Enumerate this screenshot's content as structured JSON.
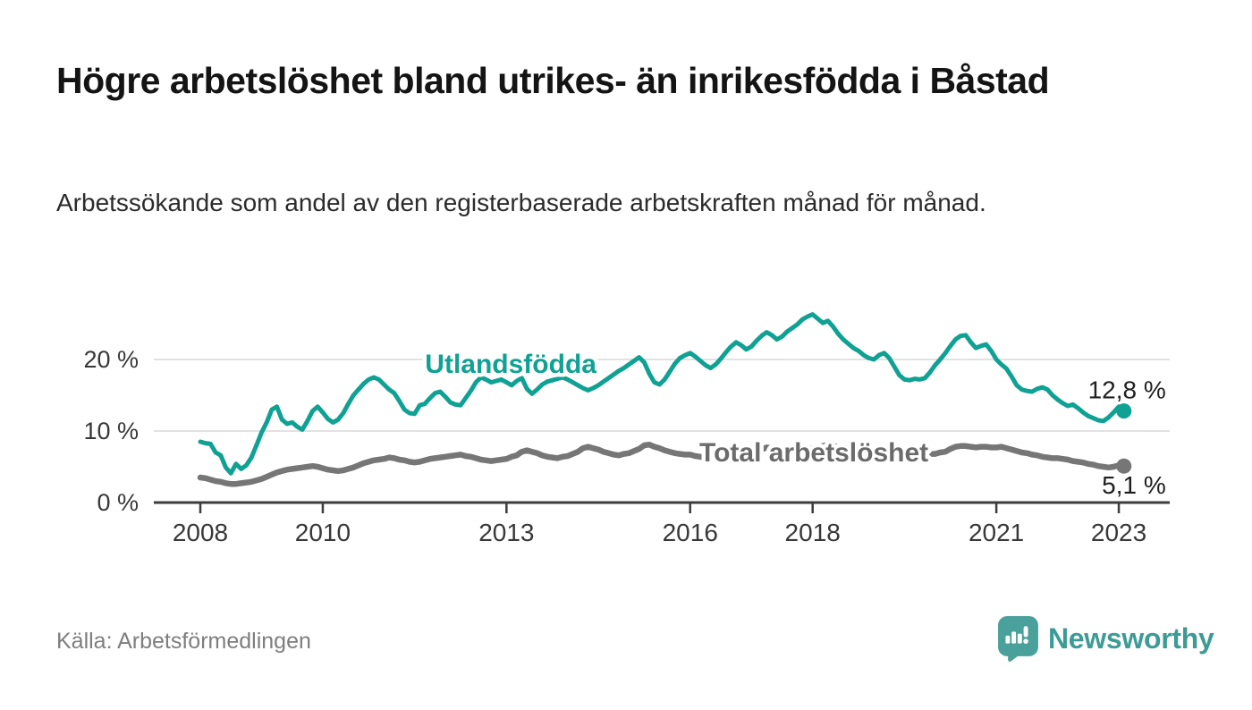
{
  "page": {
    "title": "Högre arbetslöshet bland utrikes- än inrikesfödda i Båstad",
    "subtitle": "Arbetssökande som andel av den registerbaserade arbetskraften månad för månad.",
    "source": "Källa: Arbetsförmedlingen",
    "brand": "Newsworthy"
  },
  "colors": {
    "series_foreign": "#0fa193",
    "series_total": "#767676",
    "series_total_label": "#6b6b6b",
    "grid": "#d8d8d8",
    "axis": "#3d3d3d",
    "tick_text": "#383838",
    "end_label_text": "#1f1f1f",
    "logo": "#4aa09b",
    "wordmark": "#3d9b96"
  },
  "chart_data": {
    "type": "line",
    "title": "Högre arbetslöshet bland utrikes- än inrikesfödda i Båstad",
    "subtitle": "Arbetssökande som andel av den registerbaserade arbetskraften månad för månad.",
    "unit": "%",
    "x_axis": {
      "ticks": [
        2008,
        2010,
        2013,
        2016,
        2018,
        2021,
        2023
      ],
      "range": [
        2007.2,
        2023.85
      ]
    },
    "y_axis": {
      "ticks": [
        0,
        10,
        20
      ],
      "tick_suffix": " %",
      "gridlines": [
        10,
        20
      ],
      "range": [
        0,
        28
      ],
      "grid_on": true
    },
    "legend_position": "inline-labels",
    "series": [
      {
        "name": "Total arbetslöshet",
        "color": "#767676",
        "label_color": "#6b6b6b",
        "label_pos": {
          "year": 2018.02,
          "pct": 7.0
        },
        "end_label": "5,1 %",
        "end_value": 5.1,
        "end_label_side": "below",
        "start_year": 2008,
        "monthly_values": [
          3.5,
          3.4,
          3.2,
          3.0,
          2.9,
          2.7,
          2.6,
          2.6,
          2.7,
          2.8,
          2.9,
          3.1,
          3.3,
          3.6,
          3.9,
          4.2,
          4.4,
          4.6,
          4.7,
          4.8,
          4.9,
          5.0,
          5.1,
          5.0,
          4.8,
          4.6,
          4.5,
          4.4,
          4.5,
          4.7,
          4.9,
          5.2,
          5.5,
          5.7,
          5.9,
          6.0,
          6.1,
          6.3,
          6.2,
          6.0,
          5.9,
          5.7,
          5.6,
          5.7,
          5.9,
          6.1,
          6.2,
          6.3,
          6.4,
          6.5,
          6.6,
          6.7,
          6.5,
          6.4,
          6.2,
          6.0,
          5.9,
          5.8,
          5.9,
          6.0,
          6.1,
          6.4,
          6.6,
          7.1,
          7.3,
          7.1,
          6.9,
          6.6,
          6.4,
          6.3,
          6.2,
          6.4,
          6.5,
          6.8,
          7.1,
          7.6,
          7.8,
          7.6,
          7.4,
          7.1,
          6.9,
          6.7,
          6.6,
          6.8,
          6.9,
          7.2,
          7.5,
          8.0,
          8.1,
          7.8,
          7.6,
          7.3,
          7.1,
          6.9,
          6.8,
          6.7,
          6.7,
          6.5,
          6.4,
          6.2,
          6.1,
          6.2,
          6.3,
          6.5,
          6.6,
          6.8,
          6.9,
          7.0,
          7.1,
          7.3,
          7.4,
          7.7,
          7.6,
          7.4,
          7.2,
          7.1,
          7.2,
          7.3,
          7.5,
          7.5,
          7.6,
          7.8,
          7.9,
          8.1,
          8.0,
          7.7,
          7.5,
          7.3,
          7.1,
          7.0,
          7.1,
          7.1,
          7.2,
          7.4,
          7.5,
          7.7,
          7.6,
          7.4,
          7.2,
          7.0,
          6.8,
          6.7,
          6.7,
          6.8,
          6.8,
          7.0,
          7.1,
          7.5,
          7.8,
          7.9,
          7.9,
          7.8,
          7.7,
          7.8,
          7.8,
          7.7,
          7.7,
          7.8,
          7.6,
          7.4,
          7.2,
          7.0,
          6.9,
          6.7,
          6.6,
          6.4,
          6.3,
          6.2,
          6.2,
          6.1,
          6.0,
          5.8,
          5.7,
          5.6,
          5.4,
          5.3,
          5.1,
          5.0,
          4.9,
          5.0,
          5.2,
          5.1
        ]
      },
      {
        "name": "Utlandsfödda",
        "color": "#0fa193",
        "label_color": "#0fa193",
        "label_pos": {
          "year": 2013.07,
          "pct": 19.4
        },
        "end_label": "12,8 %",
        "end_value": 12.8,
        "end_label_side": "above",
        "start_year": 2008,
        "monthly_values": [
          8.5,
          8.3,
          8.2,
          7.0,
          6.6,
          4.9,
          4.1,
          5.4,
          4.7,
          5.2,
          6.3,
          8.0,
          9.8,
          11.2,
          13.0,
          13.4,
          11.6,
          11.0,
          11.2,
          10.6,
          10.2,
          11.4,
          12.8,
          13.4,
          12.6,
          11.7,
          11.2,
          11.6,
          12.5,
          13.8,
          15.0,
          15.8,
          16.6,
          17.2,
          17.5,
          17.2,
          16.5,
          15.8,
          15.3,
          14.2,
          13.0,
          12.5,
          12.4,
          13.6,
          13.8,
          14.6,
          15.3,
          15.5,
          14.8,
          14.0,
          13.7,
          13.6,
          14.6,
          15.6,
          16.8,
          17.5,
          17.2,
          16.8,
          17.0,
          17.2,
          16.8,
          16.4,
          17.0,
          17.4,
          15.9,
          15.2,
          15.8,
          16.5,
          16.9,
          17.1,
          17.3,
          17.5,
          17.2,
          16.8,
          16.4,
          16.0,
          15.7,
          16.0,
          16.4,
          16.9,
          17.4,
          17.9,
          18.4,
          18.8,
          19.3,
          19.8,
          20.3,
          19.6,
          18.0,
          16.8,
          16.5,
          17.2,
          18.3,
          19.4,
          20.2,
          20.6,
          20.9,
          20.4,
          19.8,
          19.2,
          18.8,
          19.3,
          20.1,
          21.0,
          21.8,
          22.4,
          22.0,
          21.4,
          21.8,
          22.6,
          23.3,
          23.8,
          23.4,
          22.8,
          23.2,
          23.9,
          24.4,
          24.9,
          25.6,
          26.0,
          26.3,
          25.7,
          25.1,
          25.4,
          24.6,
          23.6,
          22.8,
          22.2,
          21.6,
          21.2,
          20.6,
          20.2,
          20.0,
          20.6,
          20.9,
          20.2,
          19.0,
          17.8,
          17.2,
          17.1,
          17.3,
          17.2,
          17.4,
          18.2,
          19.2,
          20.0,
          20.9,
          21.9,
          22.8,
          23.3,
          23.4,
          22.4,
          21.6,
          21.9,
          22.1,
          21.2,
          20.0,
          19.3,
          18.7,
          17.6,
          16.4,
          15.8,
          15.6,
          15.5,
          15.9,
          16.1,
          15.8,
          15.0,
          14.4,
          13.9,
          13.5,
          13.7,
          13.2,
          12.6,
          12.1,
          11.8,
          11.5,
          11.4,
          11.9,
          12.6,
          13.4,
          12.8
        ]
      }
    ]
  }
}
